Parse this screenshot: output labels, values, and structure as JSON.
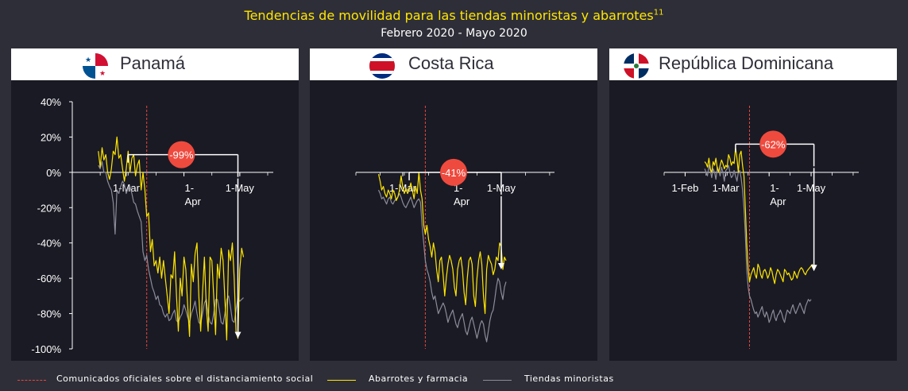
{
  "header": {
    "title": "Tendencias de movilidad para las tiendas minoristas y abarrotes",
    "title_sup": "11",
    "subtitle": "Febrero 2020 - Mayo 2020"
  },
  "colors": {
    "grocery": "#ffe600",
    "retail": "#8c8c9a",
    "social_distancing": "#e8473a",
    "badge": "#ef4a3e",
    "panel_bg": "#1a1a24",
    "page_bg": "#2e2e38"
  },
  "legend": {
    "social": "Comunicados  oficiales  sobre  el distanciamiento  social",
    "grocery": "Abarrotes  y  farmacia",
    "retail": "Tiendas  minoristas"
  },
  "chart_data": [
    {
      "type": "line",
      "country": "Panamá",
      "flag": "panama-flag",
      "yticks": [
        "40%",
        "20%",
        "0%",
        "-20%",
        "-40%",
        "-60%",
        "-80%",
        "-100%"
      ],
      "ylim": [
        -100,
        40
      ],
      "x_ticks": [
        [
          "1-Mar"
        ],
        [
          "1-",
          "Apr"
        ],
        [
          "1-May"
        ]
      ],
      "x_tick_days": [
        29,
        60,
        90
      ],
      "xlim": [
        0,
        108
      ],
      "social_distancing_day": 40,
      "change_label": "-99%",
      "change_from": 10,
      "change_to": -94,
      "arrow_day": 89,
      "series": [
        {
          "name": "Abarrotes y farmacia",
          "key": "grocery",
          "start_day": 14,
          "values": [
            12,
            3,
            14,
            7,
            10,
            0,
            -4,
            2,
            12,
            10,
            20,
            8,
            10,
            2,
            -5,
            2,
            12,
            0,
            8,
            10,
            -2,
            4,
            7,
            -10,
            0,
            -10,
            -25,
            -23,
            -45,
            -38,
            -53,
            -50,
            -57,
            -48,
            -60,
            -50,
            -60,
            -70,
            -80,
            -58,
            -60,
            -45,
            -70,
            -90,
            -60,
            -70,
            -48,
            -55,
            -75,
            -93,
            -52,
            -62,
            -46,
            -40,
            -70,
            -90,
            -68,
            -48,
            -76,
            -90,
            -48,
            -50,
            -70,
            -92,
            -52,
            -60,
            -43,
            -50,
            -72,
            -95,
            -44,
            -50,
            -40,
            -60,
            -90,
            -94,
            -55,
            -43,
            -48
          ]
        },
        {
          "name": "Tiendas minoristas",
          "key": "retail",
          "start_day": 14,
          "values": [
            4,
            2,
            6,
            0,
            0,
            -5,
            -8,
            -10,
            -17,
            -35,
            -10,
            -12,
            -8,
            -5,
            -7,
            -12,
            -9,
            -8,
            -12,
            -17,
            -18,
            -22,
            -25,
            -28,
            -45,
            -50,
            -47,
            -55,
            -60,
            -65,
            -68,
            -72,
            -70,
            -75,
            -76,
            -80,
            -82,
            -80,
            -84,
            -83,
            -80,
            -78,
            -84,
            -85,
            -82,
            -80,
            -75,
            -78,
            -82,
            -85,
            -80,
            -77,
            -73,
            -80,
            -85,
            -86,
            -80,
            -74,
            -72,
            -80,
            -85,
            -86,
            -80,
            -72,
            -72,
            -78,
            -85,
            -86,
            -80,
            -72,
            -70,
            -76,
            -84,
            -85,
            -78,
            -71,
            -73,
            -72,
            -71
          ]
        }
      ]
    },
    {
      "type": "line",
      "country": "Costa Rica",
      "flag": "costa-rica-flag",
      "x_ticks": [
        [
          "1-Mar"
        ],
        [
          "1-",
          "Apr"
        ],
        [
          "1-May"
        ]
      ],
      "x_tick_days": [
        29,
        60,
        90
      ],
      "xlim": [
        0,
        123
      ],
      "ylim": [
        -100,
        40
      ],
      "social_distancing_day": 43,
      "change_label": "-41%",
      "change_from": 0,
      "change_to": -55,
      "arrow_day": 90,
      "series": [
        {
          "name": "Abarrotes y farmacia",
          "key": "grocery",
          "start_day": 14,
          "values": [
            -1,
            -5,
            -10,
            -8,
            -12,
            -14,
            -10,
            -12,
            -15,
            -10,
            -12,
            -16,
            -14,
            -10,
            -2,
            -8,
            -12,
            -9,
            -12,
            -10,
            -6,
            -10,
            -15,
            -8,
            -12,
            0,
            -10,
            -15,
            -30,
            -35,
            -30,
            -38,
            -42,
            -48,
            -40,
            -45,
            -55,
            -62,
            -50,
            -48,
            -58,
            -70,
            -60,
            -52,
            -47,
            -50,
            -55,
            -65,
            -70,
            -55,
            -50,
            -48,
            -55,
            -68,
            -75,
            -60,
            -50,
            -48,
            -52,
            -70,
            -76,
            -60,
            -50,
            -45,
            -52,
            -70,
            -80,
            -55,
            -47,
            -50,
            -52,
            -58,
            -55,
            -48,
            -50,
            -40,
            -42,
            -55,
            -48,
            -50
          ]
        },
        {
          "name": "Tiendas minoristas",
          "key": "retail",
          "start_day": 14,
          "values": [
            -10,
            -12,
            -15,
            -14,
            -16,
            -18,
            -15,
            -14,
            -17,
            -18,
            -16,
            -15,
            -14,
            -12,
            -14,
            -17,
            -19,
            -20,
            -18,
            -16,
            -14,
            -17,
            -20,
            -18,
            -16,
            -15,
            -17,
            -30,
            -40,
            -50,
            -55,
            -58,
            -62,
            -68,
            -72,
            -70,
            -75,
            -80,
            -78,
            -76,
            -74,
            -76,
            -80,
            -85,
            -82,
            -80,
            -78,
            -82,
            -86,
            -88,
            -84,
            -82,
            -80,
            -85,
            -90,
            -92,
            -88,
            -84,
            -82,
            -86,
            -90,
            -94,
            -90,
            -86,
            -84,
            -86,
            -92,
            -96,
            -90,
            -84,
            -80,
            -78,
            -72,
            -65,
            -60,
            -62,
            -68,
            -72,
            -65,
            -62
          ]
        }
      ]
    },
    {
      "type": "line",
      "country": "República Dominicana",
      "flag": "dominican-republic-flag",
      "x_ticks": [
        [
          "1-Feb"
        ],
        [
          "1-Mar"
        ],
        [
          "1-",
          "Apr"
        ],
        [
          "1-May"
        ]
      ],
      "x_tick_days": [
        0,
        29,
        60,
        90
      ],
      "xlim": [
        -15,
        124
      ],
      "ylim": [
        -100,
        40
      ],
      "social_distancing_day": 46,
      "change_label": "-62%",
      "change_from": 16,
      "change_to": -56,
      "arrow_day": 92,
      "series": [
        {
          "name": "Abarrotes y farmacia",
          "key": "grocery",
          "start_day": 14,
          "values": [
            6,
            5,
            3,
            8,
            2,
            0,
            6,
            4,
            8,
            2,
            0,
            4,
            7,
            5,
            2,
            4,
            3,
            10,
            8,
            4,
            6,
            5,
            14,
            8,
            0,
            10,
            12,
            4,
            -2,
            -20,
            -40,
            -55,
            -62,
            -58,
            -56,
            -54,
            -58,
            -60,
            -52,
            -54,
            -58,
            -60,
            -56,
            -55,
            -57,
            -60,
            -58,
            -54,
            -56,
            -60,
            -63,
            -58,
            -55,
            -56,
            -58,
            -60,
            -62,
            -55,
            -56,
            -58,
            -57,
            -59,
            -61,
            -60,
            -56,
            -58,
            -60,
            -57,
            -55,
            -54,
            -55,
            -57,
            -58,
            -56,
            -55,
            -54,
            -53,
            -52
          ]
        },
        {
          "name": "Tiendas minoristas",
          "key": "retail",
          "start_day": 14,
          "values": [
            2,
            0,
            -2,
            4,
            1,
            -3,
            2,
            0,
            -4,
            3,
            1,
            -2,
            3,
            0,
            -5,
            1,
            2,
            4,
            0,
            -3,
            -2,
            1,
            -2,
            -5,
            0,
            1,
            -3,
            -10,
            -20,
            -35,
            -55,
            -65,
            -70,
            -72,
            -75,
            -78,
            -80,
            -79,
            -82,
            -80,
            -78,
            -76,
            -80,
            -82,
            -79,
            -81,
            -85,
            -83,
            -80,
            -78,
            -82,
            -84,
            -81,
            -80,
            -78,
            -80,
            -83,
            -85,
            -81,
            -78,
            -79,
            -80,
            -77,
            -75,
            -78,
            -80,
            -78,
            -76,
            -74,
            -76,
            -78,
            -80,
            -76,
            -74,
            -72,
            -73,
            -72
          ]
        }
      ]
    }
  ]
}
